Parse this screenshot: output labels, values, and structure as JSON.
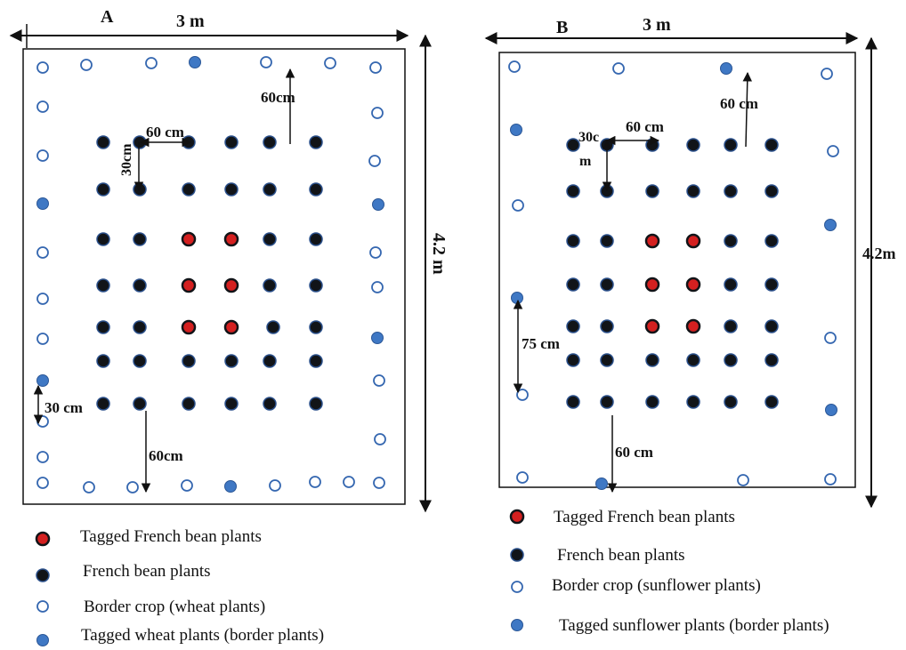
{
  "colors": {
    "french_bean": "#111418",
    "french_bean_ring": "#2a4f8a",
    "tagged_bean": "#d42020",
    "border_ring": "#3567b0",
    "tagged_border": "#3f78c4",
    "line": "#111111"
  },
  "panel_a": {
    "letter": "A",
    "width_label": "3 m",
    "height_label": "4.2 m",
    "dim_top": "60cm",
    "dim_row_vertical": "30cm",
    "dim_row_horizontal": "60 cm",
    "dim_border_spacing": "30 cm",
    "dim_bottom": "60cm",
    "legend": [
      {
        "symbol": "tagged-bean",
        "label": "Tagged French bean plants"
      },
      {
        "symbol": "bean",
        "label": "French bean plants"
      },
      {
        "symbol": "border",
        "label": "Border crop (wheat plants)"
      },
      {
        "symbol": "tagged-border",
        "label": "Tagged wheat plants (border plants)"
      }
    ]
  },
  "panel_b": {
    "letter": "B",
    "width_label": "3 m",
    "height_label": "4.2m",
    "dim_top": "60 cm",
    "dim_row_vertical_1": "30c",
    "dim_row_vertical_2": "m",
    "dim_row_horizontal": "60 cm",
    "dim_border_spacing": "75 cm",
    "dim_bottom": "60 cm",
    "legend": [
      {
        "symbol": "tagged-bean",
        "label": "Tagged French bean plants"
      },
      {
        "symbol": "bean",
        "label": "French bean plants"
      },
      {
        "symbol": "border",
        "label": "Border crop (sunflower plants)"
      },
      {
        "symbol": "tagged-border",
        "label": "Tagged sunflower plants (border plants)"
      }
    ]
  }
}
